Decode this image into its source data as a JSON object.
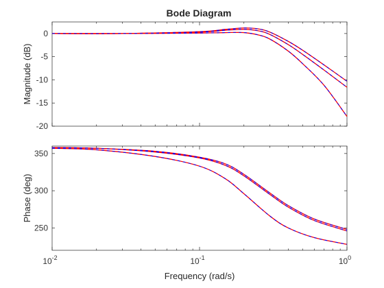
{
  "chart_data": {
    "type": "line",
    "title": "Bode Diagram",
    "xlabel": "Frequency (rad/s)",
    "x_scale": "log",
    "xlim": [
      0.01,
      1
    ],
    "x_ticks": [
      {
        "value": 0.01,
        "base": "10",
        "exp": "-2"
      },
      {
        "value": 0.1,
        "base": "10",
        "exp": "-1"
      },
      {
        "value": 1,
        "base": "10",
        "exp": "0"
      }
    ],
    "line_colors": [
      "#ff0000",
      "#0000ff"
    ],
    "panels": [
      {
        "name": "magnitude",
        "ylabel": "Magnitude (dB)",
        "ylim": [
          -20,
          2.5
        ],
        "y_ticks": [
          0,
          -5,
          -10,
          -15,
          -20
        ],
        "series": [
          {
            "x": [
              0.01,
              0.03,
              0.1,
              0.15,
              0.2,
              0.25,
              0.3,
              0.4,
              0.5,
              0.7,
              1.0
            ],
            "y": [
              0,
              0,
              0.4,
              0.9,
              1.2,
              1.0,
              0.3,
              -1.7,
              -3.6,
              -6.8,
              -10.3
            ]
          },
          {
            "x": [
              0.01,
              0.03,
              0.1,
              0.15,
              0.2,
              0.25,
              0.3,
              0.4,
              0.5,
              0.7,
              1.0
            ],
            "y": [
              0,
              0,
              0.3,
              0.7,
              0.9,
              0.6,
              -0.2,
              -2.4,
              -4.5,
              -7.9,
              -11.6
            ]
          },
          {
            "x": [
              0.01,
              0.03,
              0.1,
              0.15,
              0.2,
              0.25,
              0.3,
              0.4,
              0.5,
              0.7,
              1.0
            ],
            "y": [
              0,
              0,
              0.1,
              0.2,
              0.2,
              -0.3,
              -1.2,
              -3.8,
              -6.5,
              -11.2,
              -17.9
            ]
          }
        ]
      },
      {
        "name": "phase",
        "ylabel": "Phase (deg)",
        "ylim": [
          220,
          360
        ],
        "y_ticks": [
          250,
          300,
          350
        ],
        "series": [
          {
            "x": [
              0.01,
              0.02,
              0.05,
              0.1,
              0.15,
              0.2,
              0.3,
              0.4,
              0.6,
              1.0
            ],
            "y": [
              358,
              357,
              353,
              345,
              336,
              322,
              297,
              280,
              262,
              248
            ]
          },
          {
            "x": [
              0.01,
              0.02,
              0.05,
              0.1,
              0.15,
              0.2,
              0.3,
              0.4,
              0.6,
              1.0
            ],
            "y": [
              358,
              357,
              352,
              344,
              334,
              320,
              295,
              278,
              260,
              246
            ]
          },
          {
            "x": [
              0.01,
              0.02,
              0.05,
              0.1,
              0.15,
              0.2,
              0.3,
              0.4,
              0.6,
              1.0
            ],
            "y": [
              357,
              355,
              346,
              333,
              316,
              296,
              266,
              250,
              237,
              228
            ]
          }
        ]
      }
    ]
  }
}
